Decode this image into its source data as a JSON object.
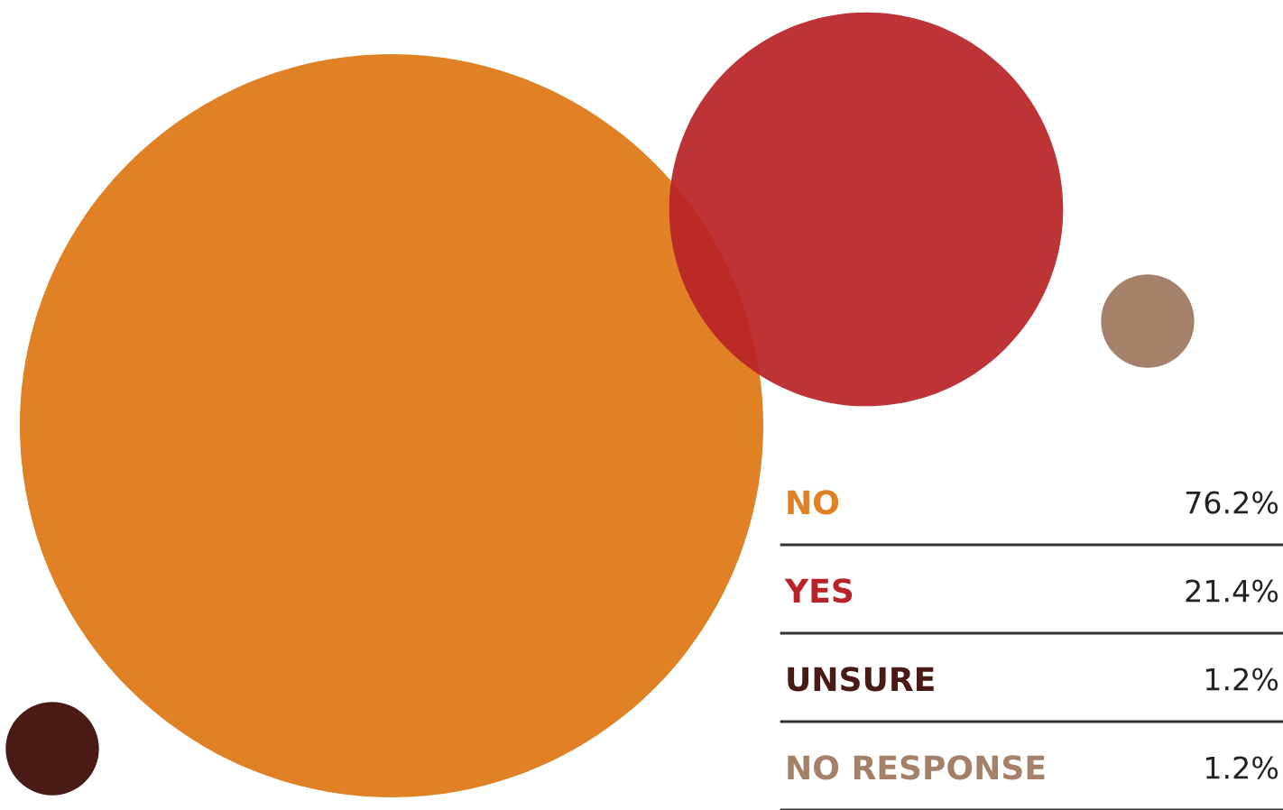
{
  "chart_data": {
    "type": "other",
    "categories": [
      "NO",
      "YES",
      "UNSURE",
      "NO RESPONSE"
    ],
    "values": [
      76.2,
      21.4,
      1.2,
      1.2
    ],
    "value_labels": [
      "76.2%",
      "21.4%",
      "1.2%",
      "1.2%"
    ],
    "colors": [
      "#e08126",
      "#b92327",
      "#4a1a14",
      "#a6816a"
    ]
  }
}
